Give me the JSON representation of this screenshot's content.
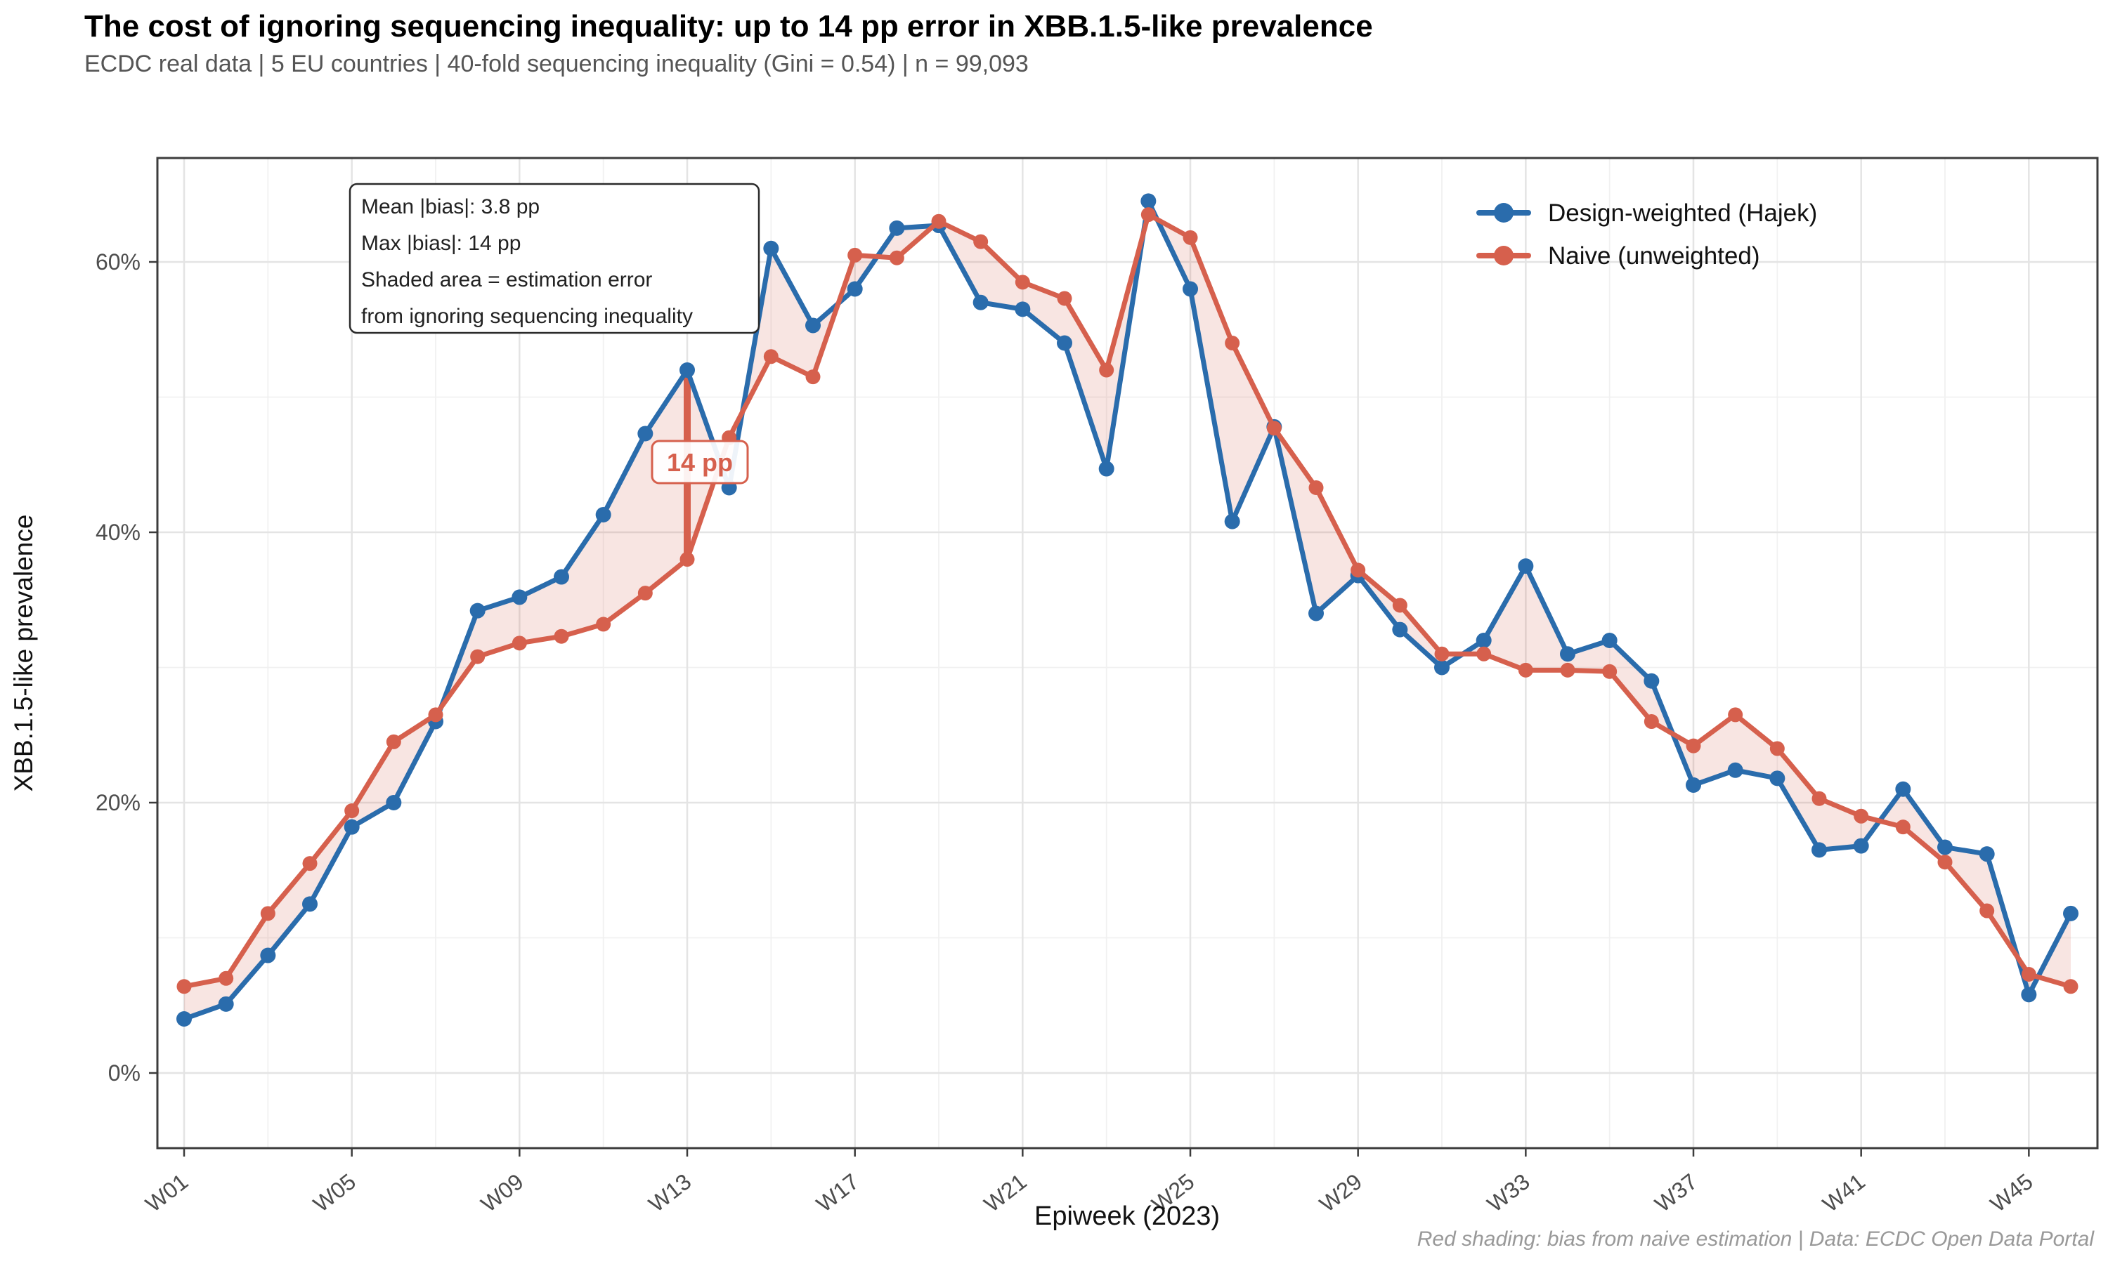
{
  "header": {
    "title": "The cost of ignoring sequencing inequality: up to 14 pp error in XBB.1.5-like prevalence",
    "subtitle": "ECDC real data | 5 EU countries | 40-fold sequencing inequality (Gini = 0.54) | n = 99,093"
  },
  "caption": "Red shading: bias from naive estimation | Data: ECDC Open Data Portal",
  "annotation_box": {
    "lines": [
      "Mean |bias|: 3.8 pp",
      "Max |bias|: 14 pp",
      "Shaded area = estimation error",
      "from ignoring sequencing inequality"
    ]
  },
  "bias_callout": {
    "label": "14 pp",
    "week": 13,
    "from_value": 38.0,
    "to_value": 52.0
  },
  "chart_data": {
    "type": "line",
    "title": "The cost of ignoring sequencing inequality: up to 14 pp error in XBB.1.5-like prevalence",
    "xlabel": "Epiweek (2023)",
    "ylabel": "XBB.1.5-like prevalence",
    "x_unit": "epiweek",
    "weeks": [
      1,
      2,
      3,
      4,
      5,
      6,
      7,
      8,
      9,
      10,
      11,
      12,
      13,
      14,
      15,
      16,
      17,
      18,
      19,
      20,
      21,
      22,
      23,
      24,
      25,
      26,
      27,
      28,
      29,
      30,
      31,
      32,
      33,
      34,
      35,
      36,
      37,
      38,
      39,
      40,
      41,
      42,
      43,
      44,
      45,
      46
    ],
    "series": [
      {
        "name": "Design-weighted (Hajek)",
        "color": "#2a6cac",
        "values": [
          4.0,
          5.1,
          8.7,
          12.5,
          18.2,
          20.0,
          26.0,
          34.2,
          35.2,
          36.7,
          41.3,
          47.3,
          52.0,
          43.3,
          61.0,
          55.3,
          58.0,
          62.5,
          62.7,
          57.0,
          56.5,
          54.0,
          44.7,
          64.5,
          58.0,
          40.8,
          47.8,
          34.0,
          36.8,
          32.8,
          30.0,
          32.0,
          37.5,
          31.0,
          32.0,
          29.0,
          21.3,
          22.4,
          21.8,
          16.5,
          16.8,
          21.0,
          16.7,
          16.2,
          5.8,
          11.8
        ]
      },
      {
        "name": "Naive (unweighted)",
        "color": "#d6604d",
        "values": [
          6.4,
          7.0,
          11.8,
          15.5,
          19.4,
          24.5,
          26.5,
          30.8,
          31.8,
          32.3,
          33.2,
          35.5,
          38.0,
          47.0,
          53.0,
          51.5,
          60.5,
          60.3,
          63.0,
          61.5,
          58.5,
          57.3,
          52.0,
          63.5,
          61.8,
          54.0,
          47.7,
          43.3,
          37.2,
          34.6,
          31.0,
          31.0,
          29.8,
          29.8,
          29.7,
          26.0,
          24.2,
          26.5,
          24.0,
          20.3,
          19.0,
          18.2,
          15.6,
          12.0,
          7.3,
          6.4
        ]
      }
    ],
    "shading": {
      "meaning": "estimation error (|bias|) between curves",
      "fill_color": "#d6604d",
      "fill_opacity": 0.16
    },
    "x_ticks": [
      {
        "week": 1,
        "label": "W01"
      },
      {
        "week": 5,
        "label": "W05"
      },
      {
        "week": 9,
        "label": "W09"
      },
      {
        "week": 13,
        "label": "W13"
      },
      {
        "week": 17,
        "label": "W17"
      },
      {
        "week": 21,
        "label": "W21"
      },
      {
        "week": 25,
        "label": "W25"
      },
      {
        "week": 29,
        "label": "W29"
      },
      {
        "week": 33,
        "label": "W33"
      },
      {
        "week": 37,
        "label": "W37"
      },
      {
        "week": 41,
        "label": "W41"
      },
      {
        "week": 45,
        "label": "W45"
      }
    ],
    "y_ticks": [
      {
        "value": 0,
        "label": "0%"
      },
      {
        "value": 20,
        "label": "20%"
      },
      {
        "value": 40,
        "label": "40%"
      },
      {
        "value": 60,
        "label": "60%"
      }
    ],
    "y_minor_ticks": [
      10,
      30,
      50
    ],
    "ylim": [
      -5.5,
      67.5
    ],
    "grid": true,
    "legend_position": "top-right-inside",
    "colors": {
      "grid_major": "#e4e4e4",
      "grid_minor": "#f1f1f1",
      "panel_border": "#3c3c3c",
      "tick_label": "#4d4d4d",
      "axis_title": "#111111",
      "subtitle": "#555555",
      "caption": "#999999",
      "annotation_border": "#2a2a2a"
    }
  }
}
